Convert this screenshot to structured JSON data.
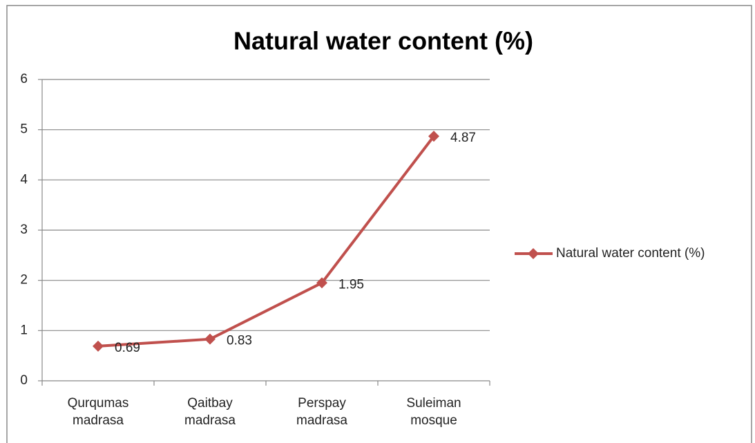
{
  "chart_data": {
    "type": "line",
    "title": "Natural water content (%)",
    "categories": [
      "Qurqumas madrasa",
      "Qaitbay madrasa",
      "Perspay madrasa",
      "Suleiman mosque"
    ],
    "series": [
      {
        "name": "Natural water content (%)",
        "color": "#c0504d",
        "values": [
          0.69,
          0.83,
          1.95,
          4.87
        ]
      }
    ],
    "ylim": [
      0,
      6
    ],
    "yticks": [
      0,
      1,
      2,
      3,
      4,
      5,
      6
    ],
    "grid": true,
    "legend": "right",
    "data_labels": true
  }
}
